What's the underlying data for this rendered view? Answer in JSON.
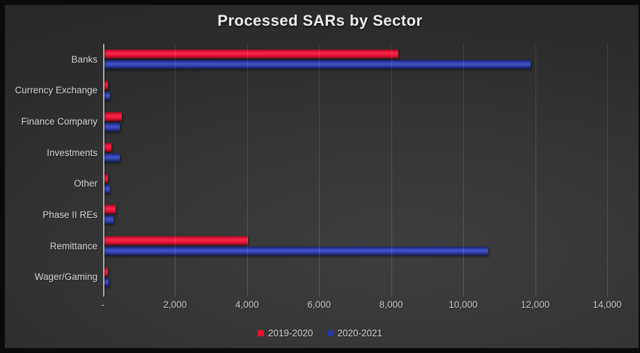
{
  "chart_data": {
    "type": "bar",
    "orientation": "horizontal",
    "title": "Processed SARs by Sector",
    "categories": [
      "Banks",
      "Currency Exchange",
      "Finance Company",
      "Investments",
      "Other",
      "Phase II REs",
      "Remittance",
      "Wager/Gaming"
    ],
    "series": [
      {
        "name": "2019-2020",
        "color": "#e8112d",
        "values": [
          8200,
          140,
          530,
          240,
          140,
          340,
          4030,
          130
        ]
      },
      {
        "name": "2020-2021",
        "color": "#2a35a8",
        "values": [
          11870,
          190,
          470,
          470,
          200,
          290,
          10700,
          150
        ]
      }
    ],
    "x_ticks": [
      "-",
      "2,000",
      "4,000",
      "6,000",
      "8,000",
      "10,000",
      "12,000",
      "14,000"
    ],
    "xlim": [
      0,
      14000
    ],
    "grid": true,
    "legend_position": "bottom",
    "background": "#333334",
    "text_color": "#d6d6d6"
  }
}
